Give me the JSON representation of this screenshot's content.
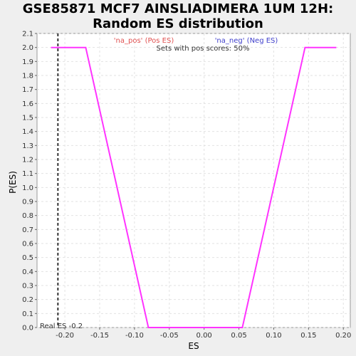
{
  "chart_data": {
    "type": "line",
    "title_line1": "GSE85871 MCF7 AINSLIADIMERA 1UM 12H:",
    "title_line2": "Random ES distribution",
    "xlabel": "ES",
    "ylabel": "P(ES)",
    "xlim": [
      -0.24,
      0.21
    ],
    "ylim": [
      0.0,
      2.1
    ],
    "x_ticks": [
      -0.2,
      -0.15,
      -0.1,
      -0.05,
      0.0,
      0.05,
      0.1,
      0.15,
      0.2
    ],
    "x_tick_labels": [
      "-0.20",
      "-0.15",
      "-0.10",
      "-0.05",
      "0.00",
      "0.05",
      "0.10",
      "0.15",
      "0.20"
    ],
    "y_ticks": [
      0.0,
      0.1,
      0.2,
      0.3,
      0.4,
      0.5,
      0.6,
      0.7,
      0.8,
      0.9,
      1.0,
      1.1,
      1.2,
      1.3,
      1.4,
      1.5,
      1.6,
      1.7,
      1.8,
      1.9,
      2.0,
      2.1
    ],
    "y_tick_labels": [
      "0.0",
      "0.1",
      "0.2",
      "0.3",
      "0.4",
      "0.5",
      "0.6",
      "0.7",
      "0.8",
      "0.9",
      "1.0",
      "1.1",
      "1.2",
      "1.3",
      "1.4",
      "1.5",
      "1.6",
      "1.7",
      "1.8",
      "1.9",
      "2.0",
      "2.1"
    ],
    "grid": true,
    "series": [
      {
        "color": "#ff33ff",
        "x": [
          -0.22,
          -0.17,
          -0.08,
          0.055,
          0.145,
          0.19
        ],
        "y": [
          2.0,
          2.0,
          0.0,
          0.0,
          2.0,
          2.0
        ]
      }
    ],
    "real_es": -0.21,
    "real_es_label": "Real ES -0.2",
    "legend_pos": "'na_pos' (Pos ES)",
    "legend_neg": "'na_neg' (Neg ES)",
    "pos_color": "#e05050",
    "neg_color": "#4040cc",
    "pos_scores_note": "Sets with pos scores: 50%"
  }
}
